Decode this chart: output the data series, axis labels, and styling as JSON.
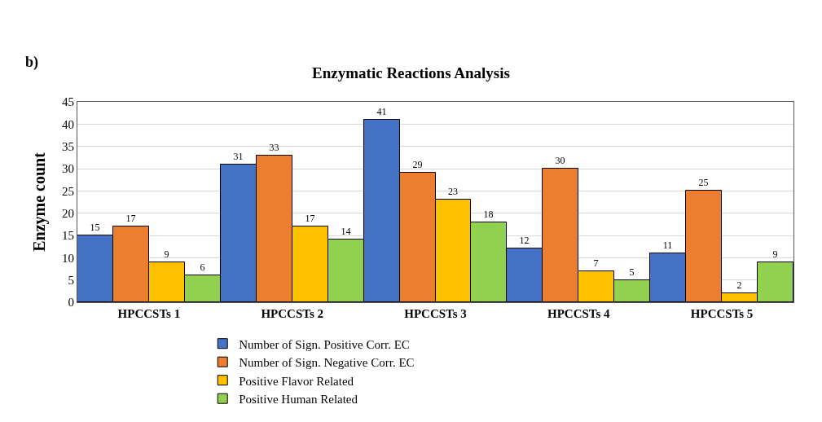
{
  "chart_data": {
    "type": "bar",
    "title": "Enzymatic Reactions Analysis",
    "ylabel": "Enzyme count",
    "annotations": [
      "b)"
    ],
    "categories": [
      "HPCCSTs 1",
      "HPCCSTs 2",
      "HPCCSTs 3",
      "HPCCSTs 4",
      "HPCCSTs 5"
    ],
    "series": [
      {
        "name": "Number of Sign. Positive Corr. EC",
        "color": "#4472c4",
        "values": [
          15,
          31,
          41,
          12,
          11
        ]
      },
      {
        "name": "Number of Sign. Negative Corr. EC",
        "color": "#ed7d31",
        "values": [
          17,
          33,
          29,
          30,
          25
        ]
      },
      {
        "name": "Positive Flavor Related",
        "color": "#ffc000",
        "values": [
          9,
          17,
          23,
          7,
          2
        ]
      },
      {
        "name": "Positive Human Related",
        "color": "#92d050",
        "values": [
          6,
          14,
          18,
          5,
          9
        ]
      }
    ],
    "ylim": [
      0,
      45
    ],
    "yticks": [
      0,
      5,
      10,
      15,
      20,
      25,
      30,
      35,
      40,
      45
    ],
    "grid": "y",
    "data_labels": true,
    "legend": "bottom"
  }
}
